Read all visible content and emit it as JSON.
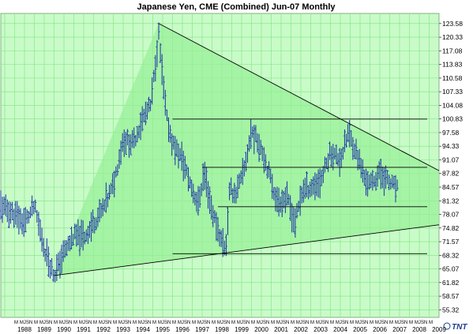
{
  "chart_data": {
    "type": "bar",
    "subtype": "ohlc",
    "title": "Japanese Yen, CME (Combined) Jun-07  Monthly",
    "logo": "TNT",
    "xlim": [
      1987.3,
      2009.5
    ],
    "ylim": [
      53.5,
      126.0
    ],
    "y_ticks": [
      123.58,
      120.33,
      117.08,
      113.83,
      110.58,
      107.33,
      104.08,
      100.83,
      97.58,
      94.33,
      91.07,
      87.82,
      84.57,
      81.32,
      78.07,
      74.82,
      71.57,
      68.32,
      65.07,
      61.82,
      58.57,
      55.32
    ],
    "x_years": [
      "1988",
      "1989",
      "1990",
      "1991",
      "1992",
      "1993",
      "1994",
      "1995",
      "1996",
      "1997",
      "1998",
      "1999",
      "2000",
      "2001",
      "2002",
      "2003",
      "2004",
      "2005",
      "2006",
      "2007",
      "2008",
      "2009"
    ],
    "x_month_markers": [
      "M",
      "MJ",
      "SN"
    ],
    "grid": true,
    "colors": {
      "background": "#c8fbc8",
      "grid": "#7ee67e",
      "wedge": "#96f096",
      "bars": "#1c2fa8",
      "lines": "#000000"
    },
    "price_path": [
      {
        "x": 1987.3,
        "y": 80
      },
      {
        "x": 1988.0,
        "y": 78
      },
      {
        "x": 1988.5,
        "y": 76
      },
      {
        "x": 1989.0,
        "y": 80
      },
      {
        "x": 1989.5,
        "y": 70
      },
      {
        "x": 1990.0,
        "y": 63.5
      },
      {
        "x": 1990.5,
        "y": 69
      },
      {
        "x": 1991.0,
        "y": 73
      },
      {
        "x": 1991.5,
        "y": 72.5
      },
      {
        "x": 1992.0,
        "y": 76
      },
      {
        "x": 1992.5,
        "y": 79.5
      },
      {
        "x": 1993.0,
        "y": 85
      },
      {
        "x": 1993.5,
        "y": 96
      },
      {
        "x": 1994.0,
        "y": 95
      },
      {
        "x": 1994.5,
        "y": 101
      },
      {
        "x": 1994.9,
        "y": 104
      },
      {
        "x": 1995.3,
        "y": 121
      },
      {
        "x": 1995.5,
        "y": 110
      },
      {
        "x": 1995.7,
        "y": 101
      },
      {
        "x": 1996.0,
        "y": 95
      },
      {
        "x": 1996.5,
        "y": 91
      },
      {
        "x": 1997.0,
        "y": 84
      },
      {
        "x": 1997.3,
        "y": 80.5
      },
      {
        "x": 1997.6,
        "y": 88
      },
      {
        "x": 1998.0,
        "y": 79
      },
      {
        "x": 1998.5,
        "y": 71.5
      },
      {
        "x": 1998.7,
        "y": 70
      },
      {
        "x": 1998.9,
        "y": 84
      },
      {
        "x": 1999.2,
        "y": 83
      },
      {
        "x": 1999.6,
        "y": 88
      },
      {
        "x": 2000.0,
        "y": 98
      },
      {
        "x": 2000.5,
        "y": 94
      },
      {
        "x": 2001.0,
        "y": 86
      },
      {
        "x": 2001.3,
        "y": 81
      },
      {
        "x": 2001.8,
        "y": 82
      },
      {
        "x": 2002.2,
        "y": 76
      },
      {
        "x": 2002.6,
        "y": 84
      },
      {
        "x": 2003.0,
        "y": 84.5
      },
      {
        "x": 2003.5,
        "y": 86
      },
      {
        "x": 2004.0,
        "y": 93
      },
      {
        "x": 2004.5,
        "y": 91
      },
      {
        "x": 2004.9,
        "y": 97.5
      },
      {
        "x": 2005.3,
        "y": 93
      },
      {
        "x": 2005.7,
        "y": 87
      },
      {
        "x": 2006.0,
        "y": 85
      },
      {
        "x": 2006.5,
        "y": 88
      },
      {
        "x": 2006.9,
        "y": 86
      },
      {
        "x": 2007.4,
        "y": 84
      }
    ],
    "trendlines": [
      {
        "x1": 1995.3,
        "y1": 123.6,
        "x2": 2009.5,
        "y2": 88.5
      },
      {
        "x1": 1990.0,
        "y1": 63.5,
        "x2": 2009.5,
        "y2": 75.6
      },
      {
        "x1": 1996.0,
        "y1": 100.8,
        "x2": 2008.9,
        "y2": 100.8
      },
      {
        "x1": 1997.5,
        "y1": 89.3,
        "x2": 2008.9,
        "y2": 89.3
      },
      {
        "x1": 1998.3,
        "y1": 79.9,
        "x2": 2008.9,
        "y2": 79.9
      },
      {
        "x1": 1996.0,
        "y1": 68.7,
        "x2": 2008.9,
        "y2": 68.7
      }
    ]
  }
}
